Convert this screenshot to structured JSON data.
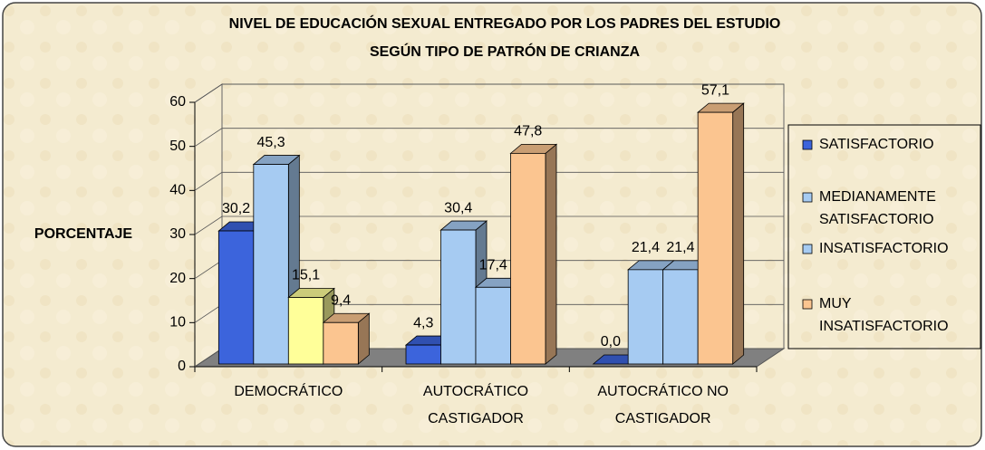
{
  "chart_data": {
    "type": "bar3d",
    "title": "NIVEL DE EDUCACIÓN SEXUAL ENTREGADO POR LOS PADRES DEL ESTUDIO",
    "subtitle": "SEGÚN TIPO DE PATRÓN DE CRIANZA",
    "ylabel": "PORCENTAJE",
    "categories": [
      "DEMOCRÁTICO",
      "AUTOCRÁTICO CASTIGADOR",
      "AUTOCRÁTICO NO CASTIGADOR"
    ],
    "series": [
      {
        "name": "SATISFACTORIO",
        "color": "#3c64dc",
        "values": [
          30.2,
          4.3,
          0.0
        ],
        "value_labels": [
          "30,2",
          "4,3",
          "0,0"
        ]
      },
      {
        "name": "MEDIANAMENTE SATISFACTORIO",
        "color": "#a6cbf2",
        "values": [
          45.3,
          30.4,
          21.4
        ],
        "value_labels": [
          "45,3",
          "30,4",
          "21,4"
        ]
      },
      {
        "name": "INSATISFACTORIO",
        "color": "#a6cbf2",
        "colors": [
          "#ffff99",
          "#a6cbf2",
          "#a6cbf2"
        ],
        "values": [
          15.1,
          17.4,
          21.4
        ],
        "value_labels": [
          "15,1",
          "17,4",
          "21,4"
        ]
      },
      {
        "name": "MUY INSATISFACTORIO",
        "color": "#fbc590",
        "values": [
          9.4,
          47.8,
          57.1
        ],
        "value_labels": [
          "9,4",
          "47,8",
          "57,1"
        ]
      }
    ],
    "ylim": [
      0,
      60
    ],
    "yticks": [
      0,
      10,
      20,
      30,
      40,
      50,
      60
    ],
    "grid": true,
    "legend": "right"
  }
}
